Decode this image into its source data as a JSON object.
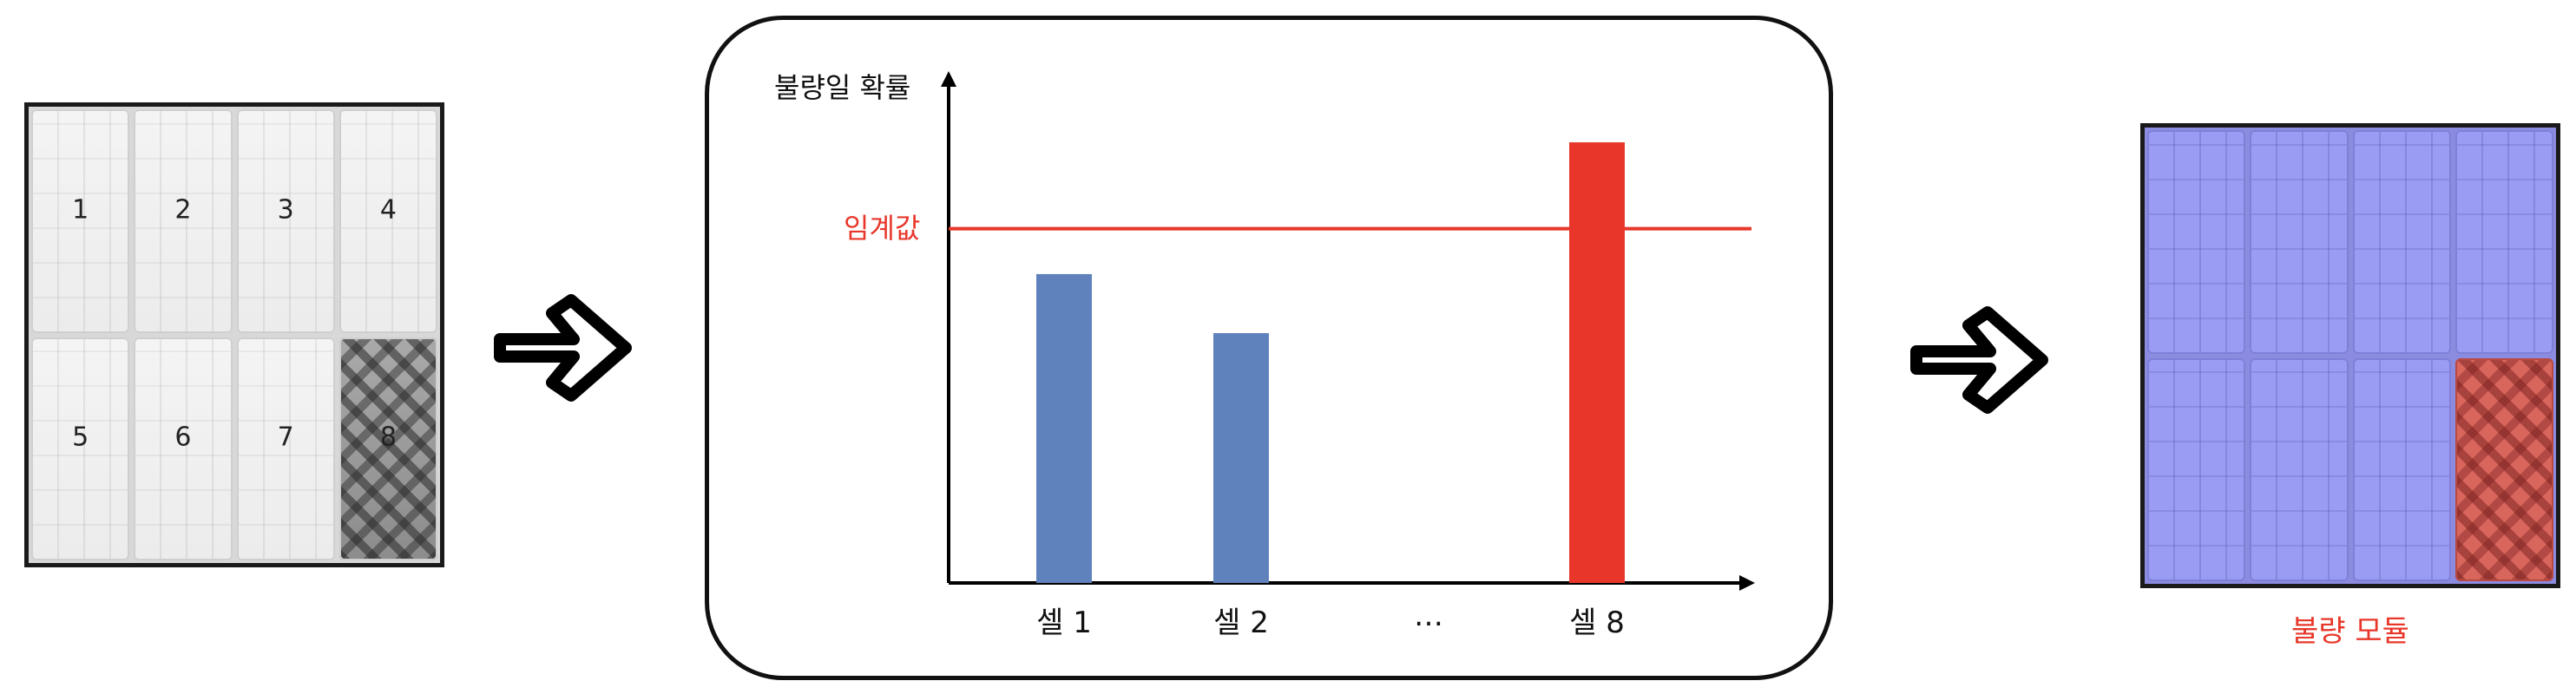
{
  "left_module": {
    "cells": [
      "1",
      "2",
      "3",
      "4",
      "5",
      "6",
      "7",
      "8"
    ],
    "defect_cell": "8"
  },
  "chart_data": {
    "type": "bar",
    "ylabel": "불량일 확률",
    "threshold_label": "임계값",
    "categories": [
      "셀 1",
      "셀 2",
      "…",
      "셀 8"
    ],
    "values": [
      0.68,
      0.55,
      null,
      0.97
    ],
    "threshold": 0.78,
    "ylim": [
      0,
      1.1
    ],
    "colors": {
      "normal": "#5f82bc",
      "defect": "#e8372a",
      "threshold": "#e8372a"
    }
  },
  "right_module": {
    "result_label": "불량 모듈",
    "colors": {
      "normal": "#9a9cf3",
      "defect": "#d9665d"
    }
  }
}
